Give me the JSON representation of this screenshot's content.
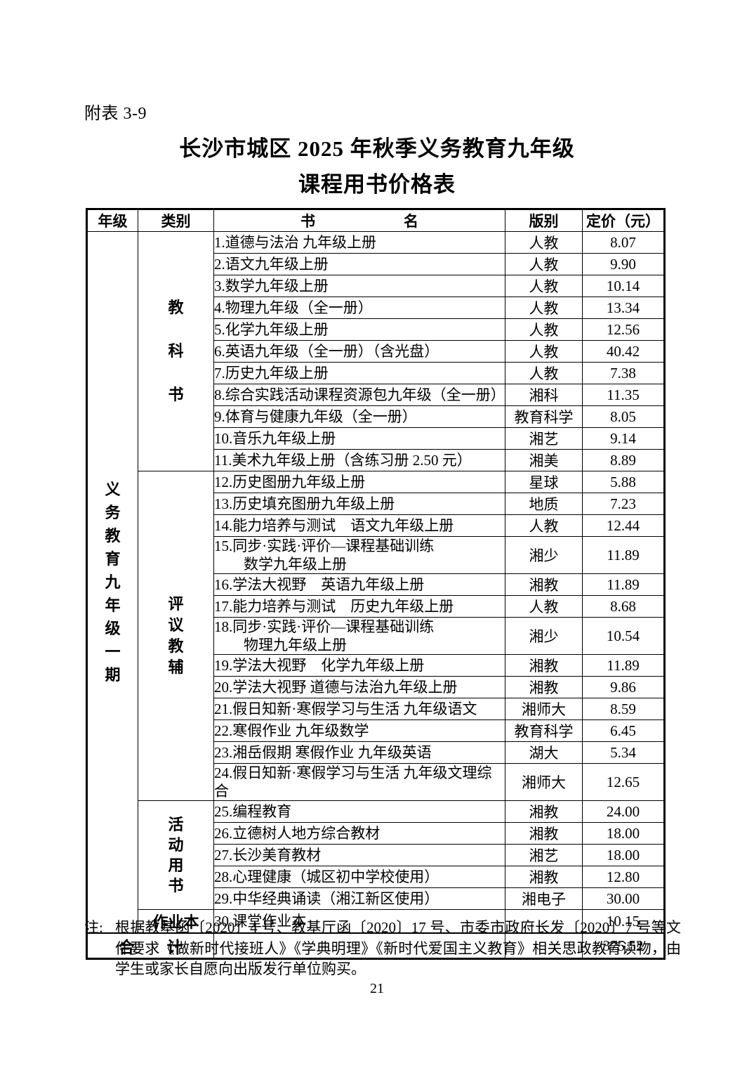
{
  "doc": {
    "annex_label": "附表 3-9",
    "title_line1": "长沙市城区 2025 年秋季义务教育九年级",
    "title_line2": "课程用书价格表",
    "page_number": "21"
  },
  "table": {
    "headers": {
      "grade": "年级",
      "category": "类别",
      "book": "书　　　　　　名",
      "publisher": "版别",
      "price": "定价（元）"
    },
    "grade_label": "义务教育九年级一期",
    "categories": [
      {
        "label": "教科书",
        "rows": 11,
        "orientation": "vertical"
      },
      {
        "label": "评议教辅",
        "rows": 13,
        "orientation": "vertical"
      },
      {
        "label": "活动用书",
        "rows": 5,
        "orientation": "vertical"
      },
      {
        "label": "作业本",
        "rows": 1,
        "orientation": "horizontal"
      }
    ],
    "rows": [
      {
        "name": "1.道德与法治 九年级上册",
        "publisher": "人教",
        "price": "8.07"
      },
      {
        "name": "2.语文九年级上册",
        "publisher": "人教",
        "price": "9.90"
      },
      {
        "name": "3.数学九年级上册",
        "publisher": "人教",
        "price": "10.14"
      },
      {
        "name": "4.物理九年级（全一册）",
        "publisher": "人教",
        "price": "13.34"
      },
      {
        "name": "5.化学九年级上册",
        "publisher": "人教",
        "price": "12.56"
      },
      {
        "name": "6.英语九年级（全一册）（含光盘）",
        "publisher": "人教",
        "price": "40.42"
      },
      {
        "name": "7.历史九年级上册",
        "publisher": "人教",
        "price": "7.38"
      },
      {
        "name": "8.综合实践活动课程资源包九年级（全一册）",
        "publisher": "湘科",
        "price": "11.35"
      },
      {
        "name": "9.体育与健康九年级（全一册）",
        "publisher": "教育科学",
        "price": "8.05"
      },
      {
        "name": "10.音乐九年级上册",
        "publisher": "湘艺",
        "price": "9.14"
      },
      {
        "name": "11.美术九年级上册（含练习册 2.50 元）",
        "publisher": "湘美",
        "price": "8.89"
      },
      {
        "name": "12.历史图册九年级上册",
        "publisher": "星球",
        "price": "5.88"
      },
      {
        "name": "13.历史填充图册九年级上册",
        "publisher": "地质",
        "price": "7.23"
      },
      {
        "name": "14.能力培养与测试　语文九年级上册",
        "publisher": "人教",
        "price": "12.44"
      },
      {
        "name": "15.同步·实践·评价—课程基础训练\n　　数学九年级上册",
        "publisher": "湘少",
        "price": "11.89"
      },
      {
        "name": "16.学法大视野　英语九年级上册",
        "publisher": "湘教",
        "price": "11.89"
      },
      {
        "name": "17.能力培养与测试　历史九年级上册",
        "publisher": "人教",
        "price": "8.68"
      },
      {
        "name": "18.同步·实践·评价—课程基础训练\n　　物理九年级上册",
        "publisher": "湘少",
        "price": "10.54"
      },
      {
        "name": "19.学法大视野　化学九年级上册",
        "publisher": "湘教",
        "price": "11.89"
      },
      {
        "name": "20.学法大视野 道德与法治九年级上册",
        "publisher": "湘教",
        "price": "9.86"
      },
      {
        "name": "21.假日知新·寒假学习与生活 九年级语文",
        "publisher": "湘师大",
        "price": "8.59"
      },
      {
        "name": "22.寒假作业 九年级数学",
        "publisher": "教育科学",
        "price": "6.45"
      },
      {
        "name": "23.湘岳假期 寒假作业 九年级英语",
        "publisher": "湖大",
        "price": "5.34"
      },
      {
        "name": "24.假日知新·寒假学习与生活 九年级文理综合",
        "publisher": "湘师大",
        "price": "12.65"
      },
      {
        "name": "25.编程教育",
        "publisher": "湘教",
        "price": "24.00"
      },
      {
        "name": "26.立德树人地方综合教材",
        "publisher": "湘教",
        "price": "18.00"
      },
      {
        "name": "27.长沙美育教材",
        "publisher": "湘艺",
        "price": "18.00"
      },
      {
        "name": "28.心理健康（城区初中学校使用）",
        "publisher": "湘教",
        "price": "12.80"
      },
      {
        "name": "29.中华经典诵读（湘江新区使用）",
        "publisher": "湘电子",
        "price": "30.00"
      },
      {
        "name": "30.课堂作业本",
        "publisher": "",
        "price": "10.15"
      }
    ],
    "total": {
      "label": "合　　计",
      "price": "375.52"
    }
  },
  "note": {
    "label": "注:",
    "text": "根据教基函〔2020〕4 号、教基厅函〔2020〕17 号、市委市政府长发〔2020〕7 号等文件要求《做新时代接班人》《学典明理》《新时代爱国主义教育》相关思政教育读物，由学生或家长自愿向出版发行单位购买。"
  }
}
